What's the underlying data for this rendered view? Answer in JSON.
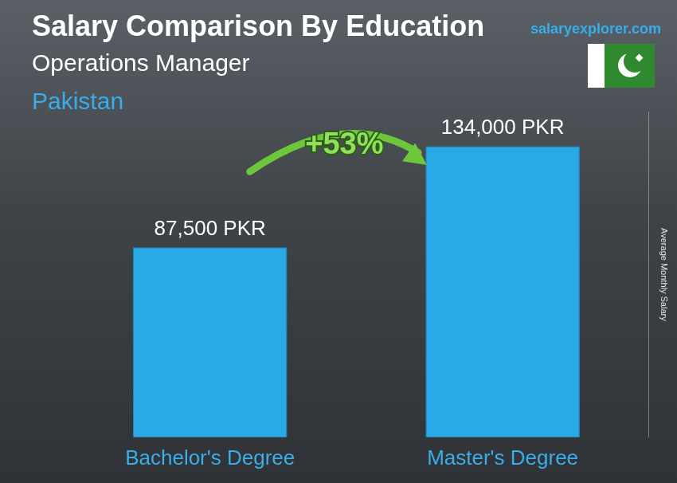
{
  "chart_data": {
    "type": "bar",
    "title": "Salary Comparison By Education",
    "subtitle": [
      "Operations Manager",
      "Pakistan"
    ],
    "source": "salaryexplorer.com",
    "categories": [
      "Bachelor's Degree",
      "Master's Degree"
    ],
    "values": [
      87500,
      134000
    ],
    "value_labels": [
      "87,500 PKR",
      "134,000 PKR"
    ],
    "data_labels": true,
    "color": "#29a9e6",
    "ylim": [
      0,
      150000
    ],
    "y_label": "Average Monthly Salary",
    "annotation": "+53%",
    "tick_labels": "x",
    "grid": false
  }
}
